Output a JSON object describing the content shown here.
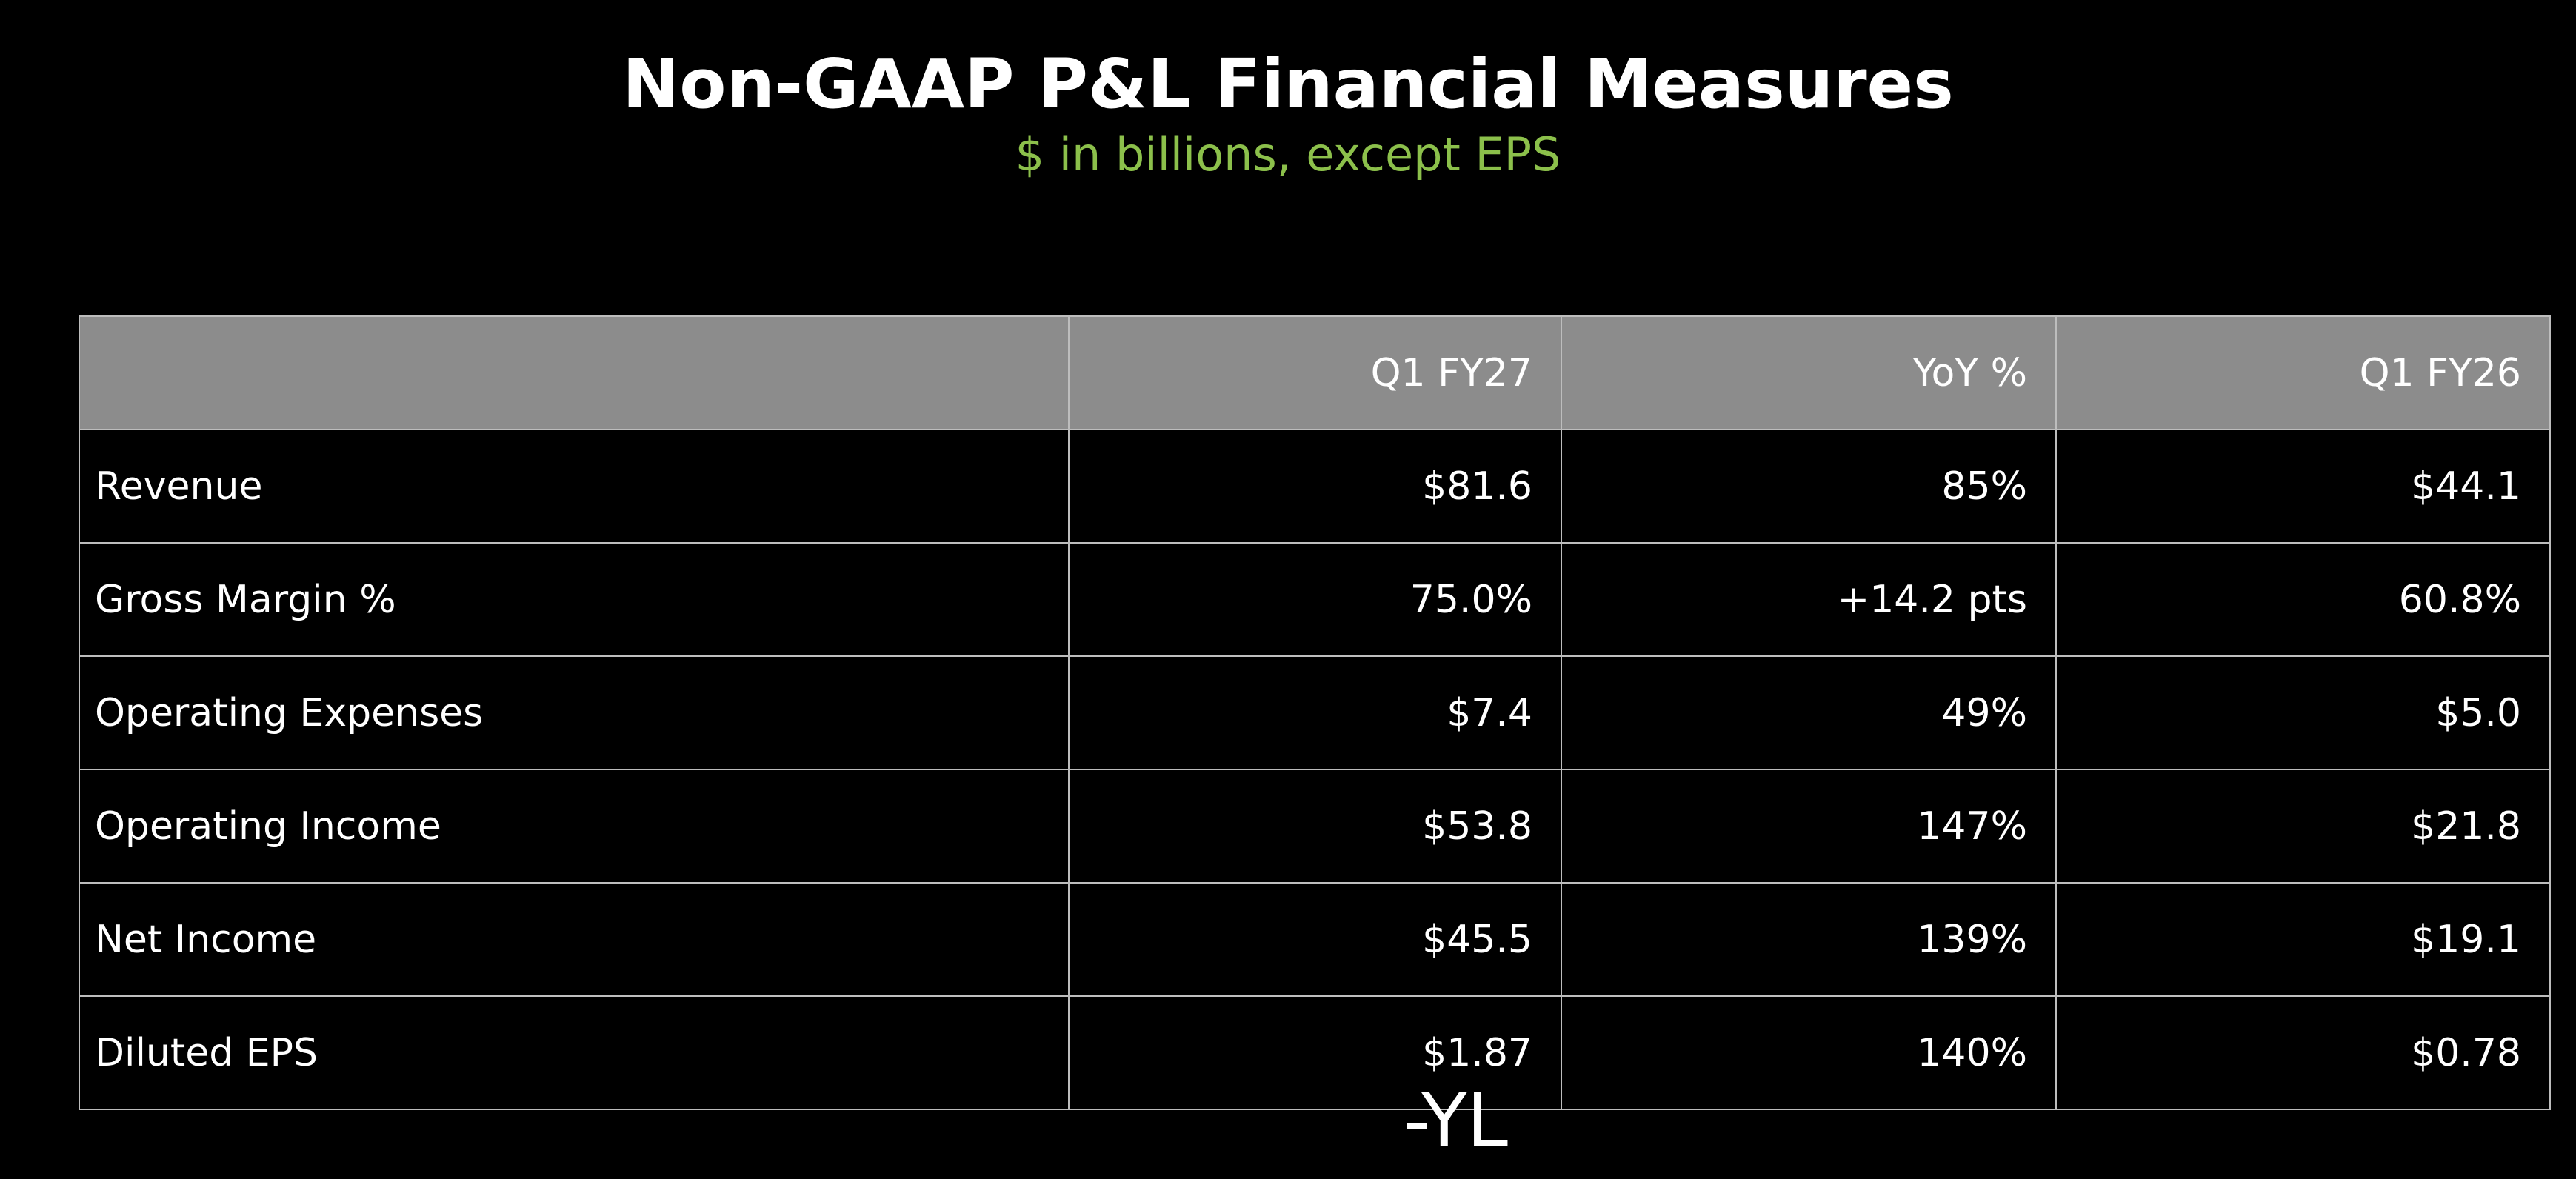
{
  "header": {
    "title": "Non-GAAP P&L Financial Measures",
    "subtitle": "$ in billions, except EPS"
  },
  "table": {
    "columns": [
      "",
      "Q1 FY27",
      "YoY %",
      "Q1 FY26"
    ],
    "rows": [
      [
        "Revenue",
        "$81.6",
        "85%",
        "$44.1"
      ],
      [
        "Gross Margin %",
        "75.0%",
        "+14.2 pts",
        "60.8%"
      ],
      [
        "Operating Expenses",
        "$7.4",
        "49%",
        "$5.0"
      ],
      [
        "Operating Income",
        "$53.8",
        "147%",
        "$21.8"
      ],
      [
        "Net Income",
        "$45.5",
        "139%",
        "$19.1"
      ],
      [
        "Diluted EPS",
        "$1.87",
        "140%",
        "$0.78"
      ]
    ]
  },
  "watermark": "-YL"
}
